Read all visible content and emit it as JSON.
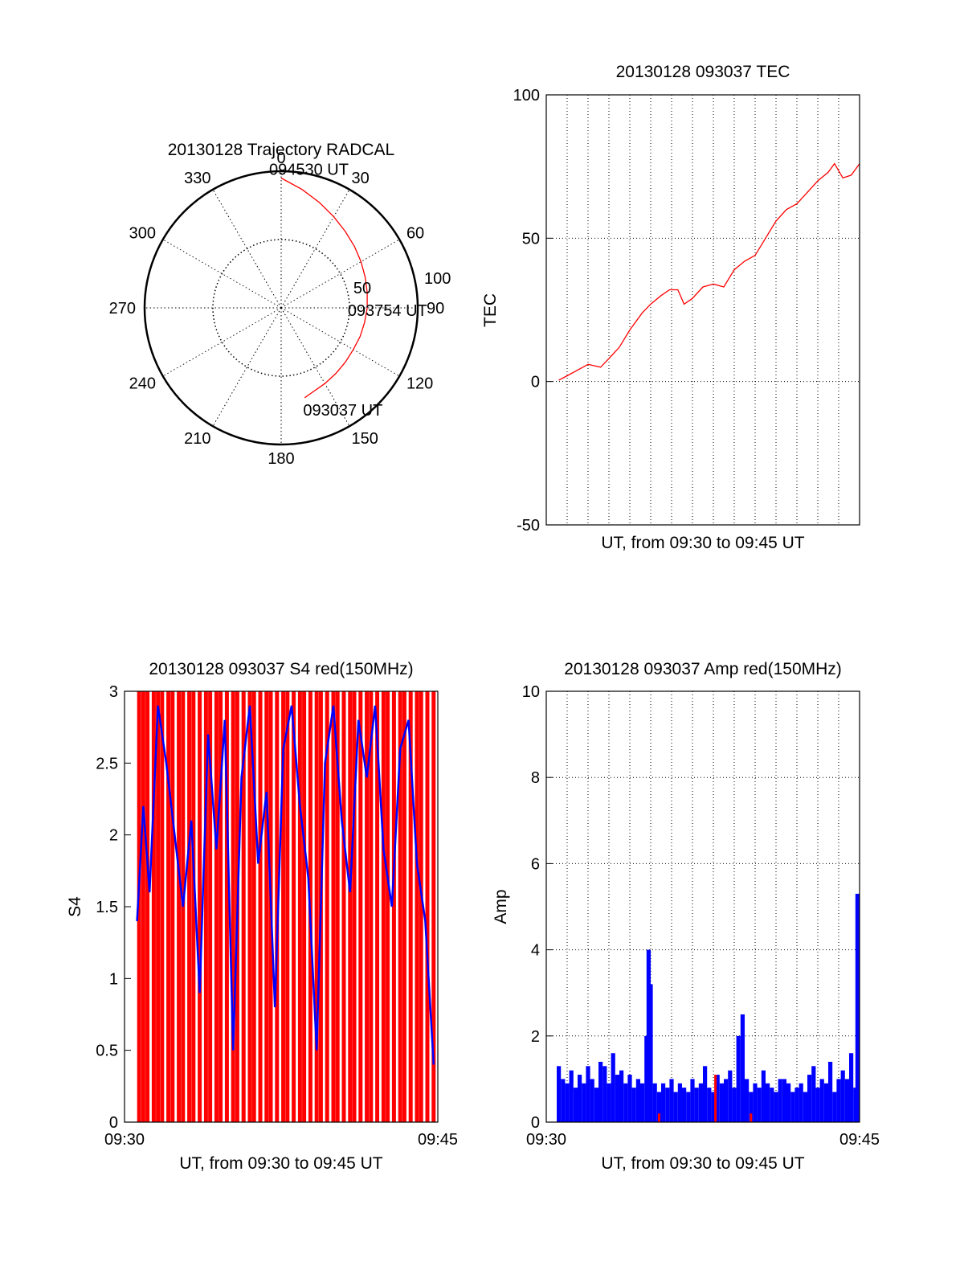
{
  "colors": {
    "red": "#ff0000",
    "blue": "#0000ff",
    "axis": "#000000",
    "grid": "#000000"
  },
  "chart_data": [
    {
      "type": "polar",
      "title": "20130128 Trajectory RADCAL",
      "angle_labels": [
        "0",
        "30",
        "60",
        "90",
        "120",
        "150",
        "180",
        "210",
        "240",
        "270",
        "300",
        "330"
      ],
      "radius_labels": [
        "50",
        "100"
      ],
      "rlim": [
        0,
        100
      ],
      "series": [
        {
          "color": "red",
          "points": [
            [
              165.3,
              68
            ],
            [
              160,
              66
            ],
            [
              150,
              64
            ],
            [
              140,
              62.5
            ],
            [
              130,
              61.5
            ],
            [
              120,
              61
            ],
            [
              110,
              61.5
            ],
            [
              100,
              62
            ],
            [
              90,
              63
            ],
            [
              80,
              64
            ],
            [
              70,
              65.5
            ],
            [
              60,
              67.5
            ],
            [
              50,
              70
            ],
            [
              40,
              73
            ],
            [
              30,
              77
            ],
            [
              20,
              82
            ],
            [
              10,
              88
            ],
            [
              0,
              95
            ]
          ]
        }
      ],
      "annotations": [
        {
          "text": "094530 UT",
          "angle": 0,
          "r": 95
        },
        {
          "text": "093754 UT",
          "angle": 96,
          "r": 62
        },
        {
          "text": "093037 UT",
          "angle": 165.3,
          "r": 68
        }
      ]
    },
    {
      "type": "line",
      "title": "20130128 093037 TEC",
      "xlabel": "UT, from 09:30 to 09:45 UT",
      "ylabel": "TEC",
      "xlim": [
        0,
        15
      ],
      "ylim": [
        -50,
        100
      ],
      "yticks": [
        "-50",
        "0",
        "50",
        "100"
      ],
      "grid": true,
      "series": [
        {
          "color": "red",
          "x": [
            0.6,
            1.0,
            1.5,
            2.0,
            2.6,
            3.0,
            3.5,
            4.0,
            4.6,
            5.0,
            5.5,
            5.9,
            6.3,
            6.6,
            7.0,
            7.5,
            8.0,
            8.5,
            9.0,
            9.5,
            10.0,
            10.5,
            11.0,
            11.5,
            12.0,
            12.5,
            13.0,
            13.5,
            13.8,
            14.2,
            14.6,
            15.0
          ],
          "y": [
            0.5,
            2,
            4,
            6,
            5,
            8,
            12,
            18,
            24,
            27,
            30,
            32,
            32,
            27,
            29,
            33,
            34,
            33,
            39,
            42,
            44,
            50,
            56,
            60,
            62,
            66,
            70,
            73,
            76,
            71,
            72,
            76
          ]
        }
      ]
    },
    {
      "type": "bar",
      "title": "20130128 093037 S4 red(150MHz)",
      "xlabel": "UT, from 09:30 to 09:45 UT",
      "ylabel": "S4",
      "xlim": [
        0,
        15
      ],
      "ylim": [
        0,
        3
      ],
      "xticks": [
        "09:30",
        "09:45"
      ],
      "yticks": [
        "0",
        "0.5",
        "1",
        "1.5",
        "2",
        "2.5",
        "3"
      ],
      "series": [
        {
          "color": "red",
          "note": "dense vertical spikes saturating at top of axis",
          "x": [
            0.7,
            0.9,
            1.1,
            1.4,
            1.6,
            1.8,
            2.1,
            2.3,
            2.6,
            2.8,
            3.1,
            3.3,
            3.6,
            3.9,
            4.1,
            4.4,
            4.6,
            4.9,
            5.2,
            5.4,
            5.7,
            6.0,
            6.2,
            6.5,
            6.8,
            7.0,
            7.3,
            7.6,
            7.8,
            8.1,
            8.4,
            8.6,
            8.9,
            9.2,
            9.4,
            9.7,
            10.0,
            10.2,
            10.5,
            10.8,
            11.0,
            11.3,
            11.6,
            11.8,
            12.1,
            12.4,
            12.6,
            12.9,
            13.2,
            13.4,
            13.7,
            14.0,
            14.2,
            14.5,
            14.8
          ],
          "y": [
            3,
            3,
            3,
            3,
            3,
            3,
            3,
            3,
            3,
            3,
            3,
            3,
            3,
            3,
            3,
            3,
            3,
            3,
            3,
            3,
            3,
            3,
            3,
            3,
            3,
            3,
            3,
            3,
            3,
            3,
            3,
            3,
            3,
            3,
            3,
            3,
            3,
            3,
            3,
            3,
            3,
            3,
            3,
            3,
            3,
            3,
            3,
            3,
            3,
            3,
            3,
            3,
            3,
            3,
            3
          ]
        },
        {
          "color": "blue",
          "x": [
            0.6,
            0.9,
            1.2,
            1.6,
            2.0,
            2.4,
            2.8,
            3.2,
            3.6,
            4.0,
            4.4,
            4.8,
            5.2,
            5.6,
            6.0,
            6.4,
            6.8,
            7.2,
            7.6,
            8.0,
            8.4,
            8.8,
            9.2,
            9.6,
            10.0,
            10.4,
            10.8,
            11.2,
            11.6,
            12.0,
            12.4,
            12.8,
            13.2,
            13.6,
            14.0,
            14.4,
            14.8
          ],
          "y": [
            1.4,
            2.2,
            1.6,
            2.9,
            2.5,
            2.0,
            1.5,
            2.1,
            0.9,
            2.7,
            1.9,
            2.8,
            0.5,
            2.4,
            2.9,
            1.8,
            2.3,
            0.8,
            2.6,
            2.9,
            2.2,
            1.7,
            0.5,
            2.5,
            2.9,
            2.1,
            1.6,
            2.8,
            2.4,
            2.9,
            1.9,
            1.5,
            2.6,
            2.8,
            1.8,
            1.4,
            0.4
          ]
        }
      ]
    },
    {
      "type": "bar",
      "title": "20130128 093037 Amp red(150MHz)",
      "xlabel": "UT, from 09:30 to 09:45 UT",
      "ylabel": "Amp",
      "xlim": [
        0,
        15
      ],
      "ylim": [
        0,
        10
      ],
      "xticks": [
        "09:30",
        "09:45"
      ],
      "yticks": [
        "0",
        "2",
        "4",
        "6",
        "8",
        "10"
      ],
      "grid": true,
      "series": [
        {
          "color": "blue",
          "x": [
            0.6,
            0.8,
            1.0,
            1.2,
            1.4,
            1.6,
            1.8,
            2.0,
            2.2,
            2.4,
            2.6,
            2.8,
            3.0,
            3.2,
            3.4,
            3.6,
            3.8,
            4.0,
            4.2,
            4.4,
            4.6,
            4.8,
            4.9,
            5.0,
            5.2,
            5.4,
            5.6,
            5.8,
            6.0,
            6.2,
            6.4,
            6.6,
            6.8,
            7.0,
            7.2,
            7.4,
            7.6,
            7.8,
            8.0,
            8.2,
            8.4,
            8.6,
            8.8,
            9.0,
            9.2,
            9.4,
            9.6,
            9.8,
            10.0,
            10.2,
            10.4,
            10.6,
            10.8,
            11.0,
            11.2,
            11.4,
            11.6,
            11.8,
            12.0,
            12.2,
            12.4,
            12.6,
            12.8,
            13.0,
            13.2,
            13.4,
            13.6,
            13.8,
            14.0,
            14.2,
            14.4,
            14.6,
            14.8,
            14.95
          ],
          "y": [
            1.3,
            1.0,
            0.9,
            1.2,
            0.8,
            1.1,
            0.9,
            1.3,
            1.0,
            0.8,
            1.4,
            1.3,
            0.9,
            1.6,
            1.1,
            1.2,
            0.9,
            1.1,
            0.8,
            1.0,
            0.9,
            2.0,
            4.0,
            3.2,
            0.9,
            0.7,
            0.9,
            0.8,
            1.0,
            0.7,
            0.9,
            0.8,
            0.7,
            1.0,
            0.8,
            0.9,
            1.3,
            0.8,
            0.7,
            1.1,
            0.9,
            1.0,
            1.2,
            0.8,
            2.0,
            2.5,
            1.0,
            0.7,
            0.9,
            0.8,
            1.2,
            0.9,
            0.8,
            0.7,
            1.0,
            1.0,
            0.9,
            0.7,
            0.8,
            0.9,
            0.7,
            1.1,
            1.3,
            0.8,
            1.0,
            0.9,
            1.4,
            0.7,
            1.0,
            1.2,
            1.0,
            1.6,
            0.8,
            5.3
          ]
        },
        {
          "color": "red",
          "x": [
            5.4,
            8.1,
            9.8
          ],
          "y": [
            0.2,
            1.1,
            0.2
          ]
        }
      ]
    }
  ]
}
